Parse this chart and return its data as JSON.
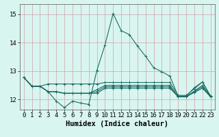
{
  "title": "",
  "xlabel": "Humidex (Indice chaleur)",
  "xlim": [
    -0.5,
    23.5
  ],
  "ylim": [
    11.65,
    15.35
  ],
  "yticks": [
    12,
    13,
    14,
    15
  ],
  "xticks": [
    0,
    1,
    2,
    3,
    4,
    5,
    6,
    7,
    8,
    9,
    10,
    11,
    12,
    13,
    14,
    15,
    16,
    17,
    18,
    19,
    20,
    21,
    22,
    23
  ],
  "bg_color": "#d9f5f0",
  "grid_color_major": "#d0a0a8",
  "line_color": "#1a6e62",
  "series_main": [
    12.78,
    12.47,
    12.47,
    12.28,
    11.95,
    11.72,
    11.95,
    11.88,
    11.83,
    13.02,
    13.92,
    15.02,
    14.42,
    14.28,
    13.88,
    13.52,
    13.12,
    12.98,
    12.82,
    12.12,
    12.12,
    12.42,
    12.62,
    12.12
  ],
  "series_flat1": [
    12.78,
    12.47,
    12.47,
    12.55,
    12.55,
    12.55,
    12.55,
    12.55,
    12.55,
    12.55,
    12.6,
    12.6,
    12.6,
    12.6,
    12.6,
    12.6,
    12.6,
    12.6,
    12.6,
    12.15,
    12.15,
    12.38,
    12.62,
    12.12
  ],
  "series_flat2": [
    12.78,
    12.47,
    12.47,
    12.28,
    12.28,
    12.22,
    12.22,
    12.22,
    12.22,
    12.35,
    12.5,
    12.5,
    12.5,
    12.5,
    12.5,
    12.5,
    12.5,
    12.5,
    12.5,
    12.1,
    12.1,
    12.3,
    12.5,
    12.1
  ],
  "series_flat3": [
    12.78,
    12.47,
    12.47,
    12.28,
    12.28,
    12.22,
    12.22,
    12.22,
    12.22,
    12.28,
    12.45,
    12.45,
    12.45,
    12.45,
    12.45,
    12.45,
    12.45,
    12.45,
    12.45,
    12.1,
    12.1,
    12.28,
    12.45,
    12.1
  ],
  "series_flat4": [
    12.78,
    12.47,
    12.47,
    12.28,
    12.28,
    12.22,
    12.22,
    12.22,
    12.22,
    12.22,
    12.4,
    12.4,
    12.4,
    12.4,
    12.4,
    12.4,
    12.4,
    12.4,
    12.4,
    12.1,
    12.1,
    12.25,
    12.4,
    12.1
  ],
  "marker": "+",
  "markersize": 3,
  "linewidth": 0.8,
  "fontsize_xlabel": 7.5,
  "fontsize_tick": 6.5
}
